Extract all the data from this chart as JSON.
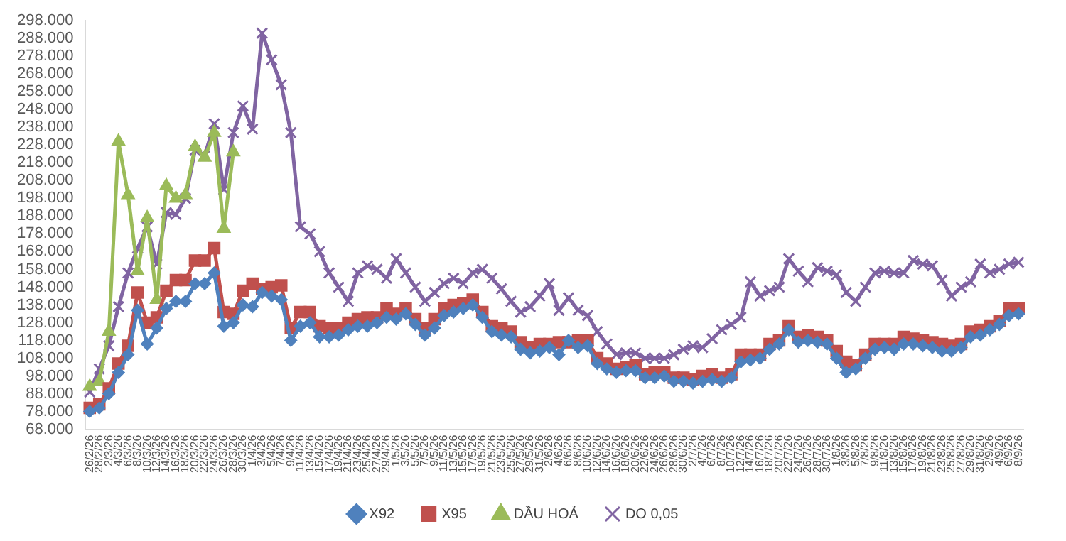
{
  "chart_data": {
    "type": "line",
    "categories": [
      "26/2/26",
      "28/2/26",
      "2/3/26",
      "4/3/26",
      "6/3/26",
      "8/3/26",
      "10/3/26",
      "12/3/26",
      "14/3/26",
      "16/3/26",
      "18/3/26",
      "20/3/26",
      "22/3/26",
      "24/3/26",
      "26/3/26",
      "28/3/26",
      "30/3/26",
      "1/4/26",
      "3/4/26",
      "5/4/26",
      "7/4/26",
      "9/4/26",
      "11/4/26",
      "13/4/26",
      "15/4/26",
      "17/4/26",
      "19/4/26",
      "21/4/26",
      "23/4/26",
      "25/4/26",
      "27/4/26",
      "29/4/26",
      "1/5/26",
      "3/5/26",
      "5/5/26",
      "7/5/26",
      "9/5/26",
      "11/5/26",
      "13/5/26",
      "15/5/26",
      "17/5/26",
      "19/5/26",
      "21/5/26",
      "23/5/26",
      "25/5/26",
      "27/5/26",
      "29/5/26",
      "31/5/26",
      "2/6/26",
      "4/6/26",
      "6/6/26",
      "8/6/26",
      "10/6/26",
      "12/6/26",
      "14/6/26",
      "16/6/26",
      "18/6/26",
      "20/6/26",
      "22/6/26",
      "24/6/26",
      "26/6/26",
      "28/6/26",
      "30/6/26",
      "2/7/26",
      "4/7/26",
      "6/7/26",
      "8/7/26",
      "10/7/26",
      "12/7/26",
      "14/7/26",
      "16/7/26",
      "18/7/26",
      "20/7/26",
      "22/7/26",
      "24/7/26",
      "26/7/26",
      "28/7/26",
      "30/7/26",
      "1/8/26",
      "3/8/26",
      "5/8/26",
      "7/8/26",
      "9/8/26",
      "11/8/26",
      "13/8/26",
      "15/8/26",
      "17/8/26",
      "19/8/26",
      "21/8/26",
      "23/8/26",
      "25/8/26",
      "27/8/26",
      "29/8/26",
      "31/8/26",
      "2/9/26",
      "4/9/26",
      "6/9/26",
      "8/9/26"
    ],
    "series": [
      {
        "name": "X92",
        "color": "#4f81bd",
        "marker": "diamond",
        "values": [
          78000,
          80000,
          88000,
          100000,
          110000,
          135000,
          116000,
          125000,
          136000,
          140000,
          140000,
          150000,
          150000,
          156000,
          126000,
          128000,
          138000,
          137000,
          145000,
          143000,
          141000,
          118000,
          126000,
          128000,
          120000,
          120000,
          121000,
          124000,
          126000,
          126000,
          128000,
          131000,
          130000,
          133000,
          127000,
          121000,
          125000,
          132000,
          134000,
          136000,
          138000,
          131000,
          123000,
          121000,
          120000,
          113000,
          111000,
          112000,
          114000,
          110000,
          118000,
          114000,
          115000,
          105000,
          102000,
          100000,
          101000,
          101000,
          97000,
          97000,
          98000,
          95000,
          95000,
          94000,
          95000,
          96000,
          95000,
          97000,
          106000,
          107000,
          108000,
          113000,
          116000,
          124000,
          117000,
          118000,
          117000,
          116000,
          108000,
          100000,
          102000,
          108000,
          113000,
          114000,
          113000,
          116000,
          116000,
          115000,
          114000,
          112000,
          112000,
          114000,
          120000,
          121000,
          124000,
          127000,
          132000,
          133000
        ]
      },
      {
        "name": "X95",
        "color": "#c0504d",
        "marker": "square",
        "values": [
          80000,
          82000,
          91000,
          105000,
          115000,
          145000,
          128000,
          131000,
          146000,
          152000,
          152000,
          163000,
          163000,
          170000,
          134000,
          133000,
          146000,
          150000,
          147000,
          148000,
          149000,
          125000,
          134000,
          134000,
          126000,
          125000,
          125000,
          128000,
          130000,
          131000,
          131000,
          136000,
          133000,
          136000,
          130000,
          125000,
          130000,
          136000,
          138000,
          139000,
          141000,
          134000,
          126000,
          125000,
          123000,
          117000,
          114000,
          116000,
          116000,
          117000,
          117000,
          118000,
          118000,
          108000,
          105000,
          102000,
          103000,
          104000,
          99000,
          100000,
          100000,
          97000,
          97000,
          96000,
          98000,
          99000,
          97000,
          99000,
          110000,
          110000,
          110000,
          116000,
          118000,
          126000,
          120000,
          121000,
          120000,
          118000,
          112000,
          106000,
          104000,
          110000,
          116000,
          116000,
          116000,
          120000,
          119000,
          118000,
          117000,
          116000,
          115000,
          116000,
          123000,
          124000,
          126000,
          129000,
          136000,
          136000
        ]
      },
      {
        "name": "DẦU HOẢ",
        "color": "#9bbb59",
        "marker": "triangle",
        "values": [
          92000,
          95000,
          123000,
          230000,
          200000,
          157000,
          187000,
          141000,
          205000,
          198000,
          200000,
          227000,
          221000,
          235000,
          181000,
          224000,
          null,
          null,
          null,
          null,
          null,
          null,
          null,
          null,
          null,
          null,
          null,
          null,
          null,
          null,
          null,
          null,
          null,
          null,
          null,
          null,
          null,
          null,
          null,
          null,
          null,
          null,
          null,
          null,
          null,
          null,
          null,
          null,
          null,
          null,
          null,
          null,
          null,
          null,
          null,
          null,
          null,
          null,
          null,
          null,
          null,
          null,
          null,
          null,
          null,
          null,
          null,
          null,
          null,
          null,
          null,
          null,
          null,
          null,
          null,
          null,
          null,
          null,
          null,
          null,
          null,
          null,
          null,
          null,
          null,
          null,
          null,
          null,
          null,
          null,
          null,
          null,
          null,
          null,
          null,
          null,
          null,
          null
        ]
      },
      {
        "name": "DO 0,05",
        "color": "#8064a2",
        "marker": "cross",
        "values": [
          89000,
          102000,
          115000,
          137000,
          156000,
          170000,
          182000,
          161000,
          190000,
          189000,
          198000,
          225000,
          222000,
          240000,
          203000,
          235000,
          250000,
          237000,
          291000,
          276000,
          262000,
          235000,
          182000,
          178000,
          168000,
          156000,
          148000,
          140000,
          156000,
          160000,
          158000,
          153000,
          164000,
          156000,
          148000,
          140000,
          145000,
          150000,
          153000,
          150000,
          156000,
          158000,
          153000,
          147000,
          140000,
          134000,
          137000,
          143000,
          150000,
          135000,
          142000,
          135000,
          132000,
          123000,
          116000,
          110000,
          111000,
          111000,
          108000,
          108000,
          108000,
          110000,
          113000,
          115000,
          114000,
          119000,
          124000,
          127000,
          131000,
          151000,
          143000,
          146000,
          148000,
          164000,
          157000,
          151000,
          159000,
          157000,
          155000,
          145000,
          140000,
          148000,
          156000,
          157000,
          156000,
          156000,
          163000,
          161000,
          160000,
          152000,
          143000,
          148000,
          151000,
          161000,
          156000,
          158000,
          161000,
          162000
        ]
      }
    ],
    "ylim": [
      68000,
      298000
    ],
    "yticks": [
      {
        "value": 68000,
        "label": "68.000"
      },
      {
        "value": 78000,
        "label": "78.000"
      },
      {
        "value": 88000,
        "label": "88.000"
      },
      {
        "value": 98000,
        "label": "98.000"
      },
      {
        "value": 108000,
        "label": "108.000"
      },
      {
        "value": 118000,
        "label": "118.000"
      },
      {
        "value": 128000,
        "label": "128.000"
      },
      {
        "value": 138000,
        "label": "138.000"
      },
      {
        "value": 148000,
        "label": "148.000"
      },
      {
        "value": 158000,
        "label": "158.000"
      },
      {
        "value": 168000,
        "label": "168.000"
      },
      {
        "value": 178000,
        "label": "178.000"
      },
      {
        "value": 188000,
        "label": "188.000"
      },
      {
        "value": 198000,
        "label": "198.000"
      },
      {
        "value": 208000,
        "label": "208.000"
      },
      {
        "value": 218000,
        "label": "218.000"
      },
      {
        "value": 228000,
        "label": "228.000"
      },
      {
        "value": 238000,
        "label": "238.000"
      },
      {
        "value": 248000,
        "label": "248.000"
      },
      {
        "value": 258000,
        "label": "258.000"
      },
      {
        "value": 268000,
        "label": "268.000"
      },
      {
        "value": 278000,
        "label": "278.000"
      },
      {
        "value": 288000,
        "label": "288.000"
      },
      {
        "value": 298000,
        "label": "298.000"
      }
    ],
    "grid": false,
    "legend": "bottom"
  }
}
